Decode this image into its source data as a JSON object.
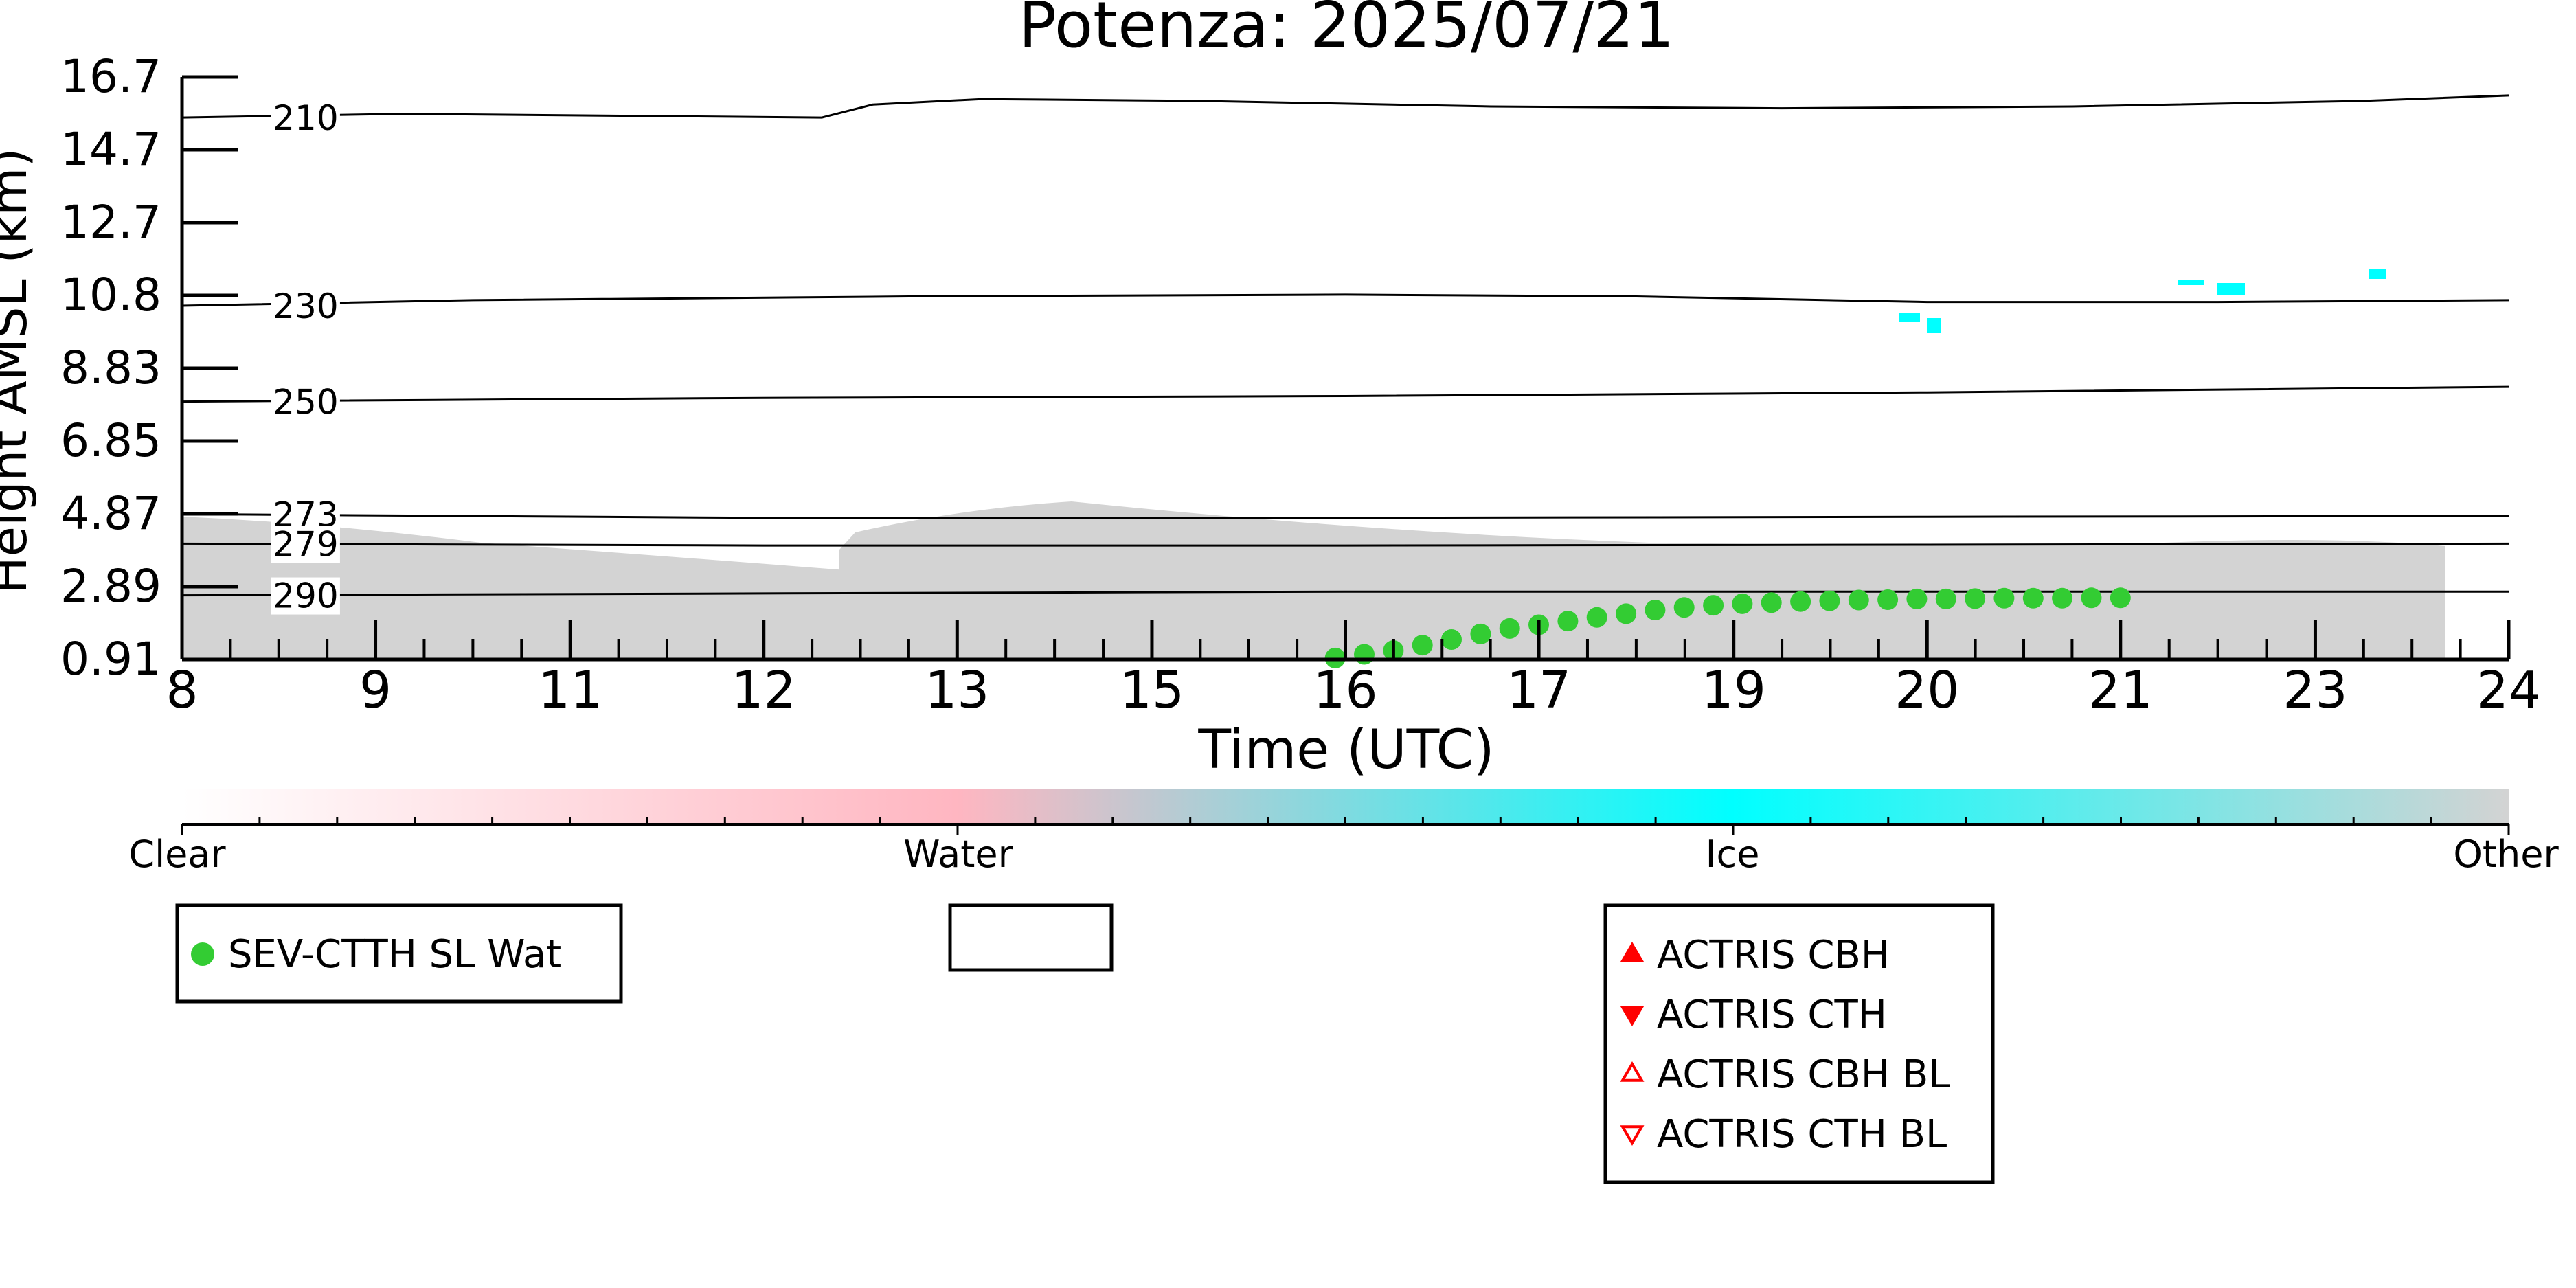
{
  "chart_data": {
    "type": "scatter",
    "title": "Potenza: 2025/07/21",
    "xlabel": "Time (UTC)",
    "ylabel": "Height AMSL (km)",
    "xlim": [
      8,
      24
    ],
    "ylim": [
      0.91,
      16.7
    ],
    "x_ticks": [
      {
        "value": 8,
        "label": "8"
      },
      {
        "value": 9.33,
        "label": "9"
      },
      {
        "value": 10.67,
        "label": "11"
      },
      {
        "value": 12,
        "label": "12"
      },
      {
        "value": 13.33,
        "label": "13"
      },
      {
        "value": 14.67,
        "label": "15"
      },
      {
        "value": 16,
        "label": "16"
      },
      {
        "value": 17.33,
        "label": "17"
      },
      {
        "value": 18.67,
        "label": "19"
      },
      {
        "value": 20,
        "label": "20"
      },
      {
        "value": 21.33,
        "label": "21"
      },
      {
        "value": 22.67,
        "label": "23"
      },
      {
        "value": 24,
        "label": "24"
      }
    ],
    "y_ticks": [
      "0.91",
      "2.89",
      "4.87",
      "6.85",
      "8.83",
      "10.8",
      "12.7",
      "14.7",
      "16.7"
    ],
    "isotherms": [
      {
        "label": "210",
        "x": [
          8,
          9.5,
          12.4,
          12.75,
          13.5,
          15,
          17,
          19,
          21,
          23,
          24
        ],
        "y": [
          15.6,
          15.7,
          15.6,
          15.95,
          16.1,
          16.05,
          15.9,
          15.85,
          15.9,
          16.05,
          16.2
        ]
      },
      {
        "label": "230",
        "x": [
          8,
          10,
          13,
          16,
          18,
          20,
          22,
          24
        ],
        "y": [
          10.5,
          10.65,
          10.75,
          10.8,
          10.75,
          10.6,
          10.6,
          10.65
        ]
      },
      {
        "label": "250",
        "x": [
          8,
          12,
          16,
          20,
          24
        ],
        "y": [
          7.9,
          8.0,
          8.05,
          8.15,
          8.3
        ]
      },
      {
        "label": "273",
        "x": [
          8,
          12,
          16,
          20,
          24
        ],
        "y": [
          4.85,
          4.75,
          4.75,
          4.78,
          4.8
        ]
      },
      {
        "label": "279",
        "x": [
          8,
          12,
          16,
          20,
          24
        ],
        "y": [
          4.05,
          4.0,
          4.0,
          4.02,
          4.05
        ]
      },
      {
        "label": "290",
        "x": [
          8,
          12,
          16,
          20,
          24
        ],
        "y": [
          2.65,
          2.7,
          2.75,
          2.75,
          2.75
        ]
      }
    ],
    "series": [
      {
        "name": "SEV-CTTH SL Wat",
        "marker": "circle",
        "color": "#33cc33",
        "x": [
          15.93,
          16.13,
          16.33,
          16.53,
          16.73,
          16.93,
          17.13,
          17.33,
          17.53,
          17.73,
          17.93,
          18.13,
          18.33,
          18.53,
          18.73,
          18.93,
          19.13,
          19.33,
          19.53,
          19.73,
          19.93,
          20.13,
          20.33,
          20.53,
          20.73,
          20.93,
          21.13,
          21.33
        ],
        "y": [
          0.95,
          1.05,
          1.15,
          1.3,
          1.45,
          1.6,
          1.75,
          1.85,
          1.95,
          2.05,
          2.15,
          2.25,
          2.32,
          2.38,
          2.42,
          2.45,
          2.48,
          2.5,
          2.52,
          2.53,
          2.55,
          2.55,
          2.56,
          2.57,
          2.57,
          2.57,
          2.58,
          2.58
        ]
      }
    ],
    "colorbar": {
      "labels": [
        "Clear",
        "Water",
        "Ice",
        "Other"
      ],
      "colors": [
        "#ffffff",
        "#ffb6c1",
        "#00ffff",
        "#d3d3d3"
      ]
    },
    "legend_empty": [],
    "legend_actris": [
      {
        "label": "ACTRIS CBH",
        "marker": "triangle-up",
        "filled": true,
        "color": "#ff0000"
      },
      {
        "label": "ACTRIS CTH",
        "marker": "triangle-down",
        "filled": true,
        "color": "#ff0000"
      },
      {
        "label": "ACTRIS CBH BL",
        "marker": "triangle-up",
        "filled": false,
        "color": "#ff0000"
      },
      {
        "label": "ACTRIS CTH BL",
        "marker": "triangle-down",
        "filled": false,
        "color": "#ff0000"
      }
    ]
  }
}
